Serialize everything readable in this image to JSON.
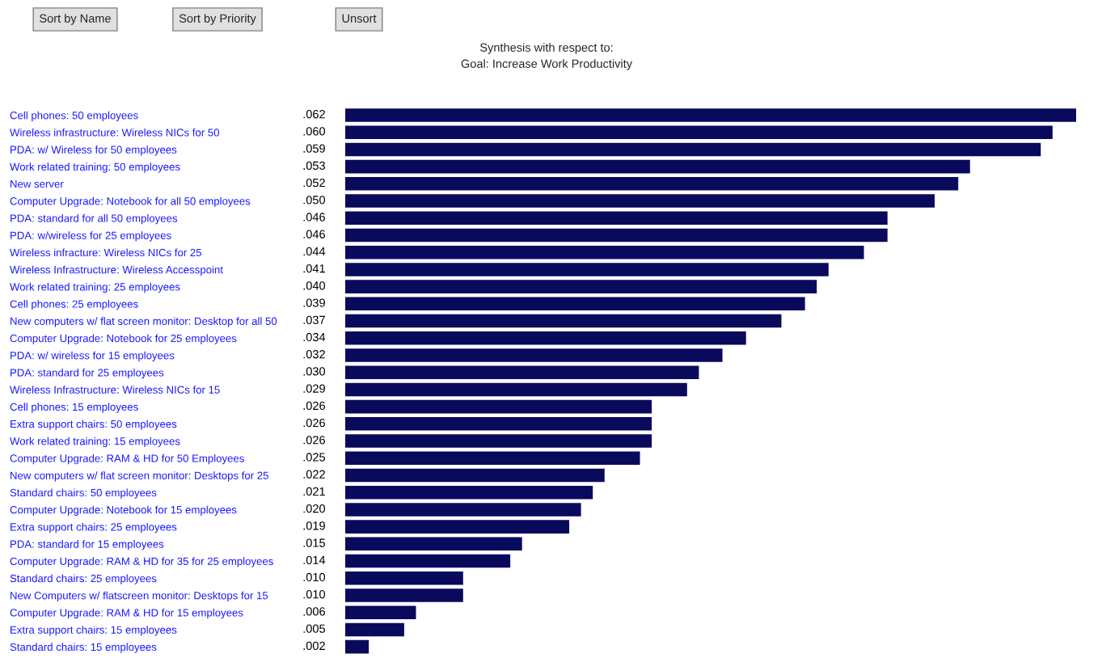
{
  "chart_data": {
    "type": "bar",
    "orientation": "horizontal",
    "title": "Synthesis with respect to:",
    "subtitle": "Goal: Increase Work Productivity",
    "annotations": [
      "Sort by Name",
      "Sort by Priority",
      "Unsort"
    ],
    "color": "#0a0a5c",
    "categories": [
      "Cell phones: 50 employees",
      "Wireless infrastructure: Wireless NICs for 50",
      "PDA: w/ Wireless for 50 employees",
      "Work related training: 50 employees",
      "New server",
      "Computer Upgrade: Notebook for all 50 employees",
      "PDA: standard for all 50 employees",
      "PDA: w/wireless for 25 employees",
      "Wireless infracture: Wireless NICs for 25",
      "Wireless Infrastructure: Wireless Accesspoint",
      "Work related training: 25 employees",
      "Cell phones: 25 employees",
      "New computers w/ flat screen monitor: Desktop for all 50",
      "Computer Upgrade: Notebook for 25 employees",
      "PDA: w/ wireless for 15 employees",
      "PDA: standard for 25 employees",
      "Wireless Infrastructure: Wireless NICs for 15",
      "Cell phones: 15 employees",
      "Extra support chairs: 50 employees",
      "Work related training: 15 employees",
      "Computer Upgrade: RAM & HD for 50 Employees",
      "New computers w/ flat screen monitor: Desktops for 25",
      "Standard chairs: 50 employees",
      "Computer Upgrade: Notebook for 15 employees",
      "Extra support chairs: 25 employees",
      "PDA: standard for 15 employees",
      "Computer Upgrade: RAM & HD for 35 for 25 employees",
      "Standard chairs: 25 employees",
      "New Computers w/ flatscreen monitor: Desktops for 15",
      "Computer Upgrade: RAM & HD for 15 employees",
      "Extra support chairs: 15 employees",
      "Standard chairs: 15 employees"
    ],
    "values": [
      0.062,
      0.06,
      0.059,
      0.053,
      0.052,
      0.05,
      0.046,
      0.046,
      0.044,
      0.041,
      0.04,
      0.039,
      0.037,
      0.034,
      0.032,
      0.03,
      0.029,
      0.026,
      0.026,
      0.026,
      0.025,
      0.022,
      0.021,
      0.02,
      0.019,
      0.015,
      0.014,
      0.01,
      0.01,
      0.006,
      0.005,
      0.002
    ],
    "value_labels": [
      ".062",
      ".060",
      ".059",
      ".053",
      ".052",
      ".050",
      ".046",
      ".046",
      ".044",
      ".041",
      ".040",
      ".039",
      ".037",
      ".034",
      ".032",
      ".030",
      ".029",
      ".026",
      ".026",
      ".026",
      ".025",
      ".022",
      ".021",
      ".020",
      ".019",
      ".015",
      ".014",
      ".010",
      ".010",
      ".006",
      ".005",
      ".002"
    ]
  }
}
